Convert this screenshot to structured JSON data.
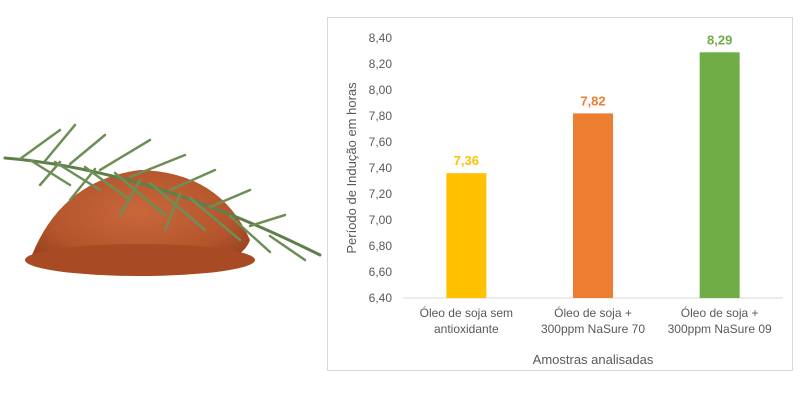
{
  "image": {
    "description_icon": "rosemary-paprika-icon",
    "colors": {
      "powder": "#b5552c",
      "leaf": "#5f7f4a"
    }
  },
  "chart_data": {
    "type": "bar",
    "categories": [
      [
        "Óleo de soja sem",
        "antioxidante"
      ],
      [
        "Óleo de soja +",
        "300ppm NaSure 70"
      ],
      [
        "Óleo de soja +",
        "300ppm NaSure 09"
      ]
    ],
    "values": [
      7.36,
      7.82,
      8.29
    ],
    "data_labels": [
      "7,36",
      "7,82",
      "8,29"
    ],
    "colors": [
      "#ffc000",
      "#ed7d31",
      "#70ad47"
    ],
    "title": "",
    "xlabel": "Amostras analisadas",
    "ylabel": "Período de Indução em horas",
    "ylim": [
      6.4,
      8.4
    ],
    "yticks": [
      {
        "value": 6.4,
        "label": "6,40"
      },
      {
        "value": 6.6,
        "label": "6,60"
      },
      {
        "value": 6.8,
        "label": "6,80"
      },
      {
        "value": 7.0,
        "label": "7,00"
      },
      {
        "value": 7.2,
        "label": "7,20"
      },
      {
        "value": 7.4,
        "label": "7,40"
      },
      {
        "value": 7.6,
        "label": "7,60"
      },
      {
        "value": 7.8,
        "label": "7,80"
      },
      {
        "value": 8.0,
        "label": "8,00"
      },
      {
        "value": 8.2,
        "label": "8,20"
      },
      {
        "value": 8.4,
        "label": "8,40"
      }
    ],
    "grid": false
  }
}
